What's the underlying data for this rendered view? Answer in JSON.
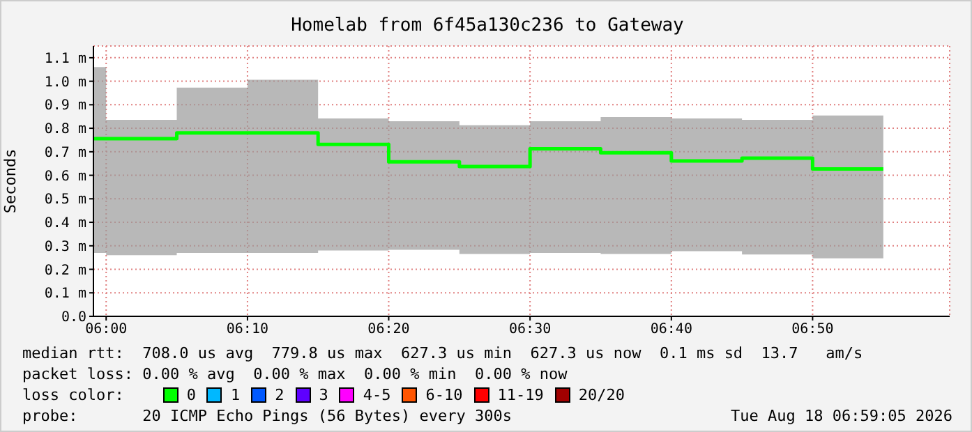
{
  "chart_data": {
    "type": "step",
    "title": "Homelab from 6f45a130c236 to Gateway",
    "ylabel": "Seconds",
    "x": [
      5.985,
      6.0,
      6.0833,
      6.1667,
      6.25,
      6.3333,
      6.4167,
      6.5,
      6.5833,
      6.6667,
      6.75,
      6.8333,
      6.9167
    ],
    "series": [
      {
        "color": "#00ff00",
        "values": [
          0.756,
          0.756,
          0.78,
          0.78,
          0.731,
          0.657,
          0.637,
          0.713,
          0.696,
          0.661,
          0.673,
          0.627,
          0.627
        ],
        "lower": [
          0.27,
          0.26,
          0.27,
          0.27,
          0.28,
          0.283,
          0.265,
          0.27,
          0.265,
          0.277,
          0.263,
          0.247,
          0.247
        ],
        "upper": [
          1.06,
          0.836,
          0.973,
          1.006,
          0.842,
          0.83,
          0.813,
          0.83,
          0.848,
          0.842,
          0.836,
          0.854,
          0.854
        ]
      }
    ],
    "xlim": [
      5.985,
      6.995
    ],
    "xticks": [
      {
        "value": 6.0,
        "label": "06:00"
      },
      {
        "value": 6.1667,
        "label": "06:10"
      },
      {
        "value": 6.3333,
        "label": "06:20"
      },
      {
        "value": 6.5,
        "label": "06:30"
      },
      {
        "value": 6.6667,
        "label": "06:40"
      },
      {
        "value": 6.8333,
        "label": "06:50"
      }
    ],
    "ylim": [
      0,
      1.15
    ],
    "yticks": [
      {
        "value": 0,
        "label": "0.0"
      },
      {
        "value": 0.1,
        "label": "0.1 m"
      },
      {
        "value": 0.2,
        "label": "0.2 m"
      },
      {
        "value": 0.3,
        "label": "0.3 m"
      },
      {
        "value": 0.4,
        "label": "0.4 m"
      },
      {
        "value": 0.5,
        "label": "0.5 m"
      },
      {
        "value": 0.6,
        "label": "0.6 m"
      },
      {
        "value": 0.7,
        "label": "0.7 m"
      },
      {
        "value": 0.8,
        "label": "0.8 m"
      },
      {
        "value": 0.9,
        "label": "0.9 m"
      },
      {
        "value": 1.0,
        "label": "1.0 m"
      },
      {
        "value": 1.1,
        "label": "1.1 m"
      }
    ],
    "grid": true,
    "annotations": [
      "median rtt:  708.0 us avg  779.8 us max  627.3 us min  627.3 us now  0.1 ms sd  13.7   am/s",
      "packet loss: 0.00 % avg  0.00 % max  0.00 % min  0.00 % now",
      "loss color:",
      "0",
      "1",
      "2",
      "3",
      "4-5",
      "6-10",
      "11-19",
      "20/20",
      "probe:       20 ICMP Echo Pings (56 Bytes) every 300s",
      "Tue Aug 18 06:59:05 2026"
    ]
  }
}
